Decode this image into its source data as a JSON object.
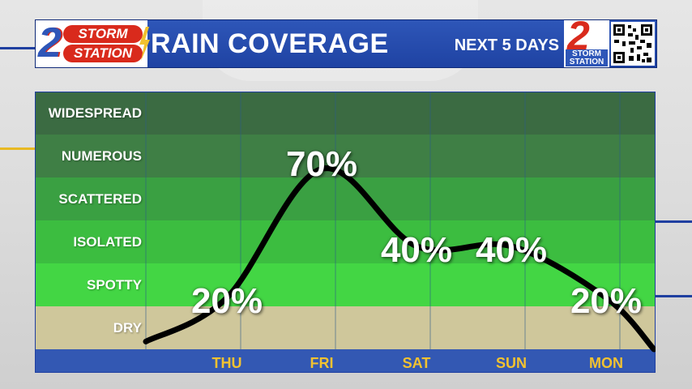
{
  "header": {
    "logo_number": "2",
    "logo_line1": "STORM",
    "logo_line2": "STATION",
    "title": "RAIN COVERAGE",
    "subtitle": "NEXT 5 DAYS",
    "right_logo_number": "2",
    "right_logo_line1": "STORM",
    "right_logo_line2": "STATION"
  },
  "colors": {
    "header_blue": "#2346a6",
    "accent_red": "#d92a1c",
    "day_yellow": "#f2c230",
    "band_widespread": "#3b6b42",
    "band_numerous": "#3f7f45",
    "band_scattered": "#3aa042",
    "band_isolated": "#3cbd40",
    "band_spotty": "#43d644",
    "band_dry": "#cfc79b",
    "footer_blue": "#3358b3"
  },
  "chart_data": {
    "type": "line",
    "title": "RAIN COVERAGE",
    "subtitle": "NEXT 5 DAYS",
    "categories": [
      "THU",
      "FRI",
      "SAT",
      "SUN",
      "MON"
    ],
    "values": [
      20,
      70,
      40,
      40,
      20
    ],
    "value_labels": [
      "20%",
      "70%",
      "40%",
      "40%",
      "20%"
    ],
    "y_categories": [
      "DRY",
      "SPOTTY",
      "ISOLATED",
      "SCATTERED",
      "NUMEROUS",
      "WIDESPREAD"
    ],
    "ylim": [
      0,
      100
    ],
    "unit": "%",
    "legend": "none",
    "grid": true
  }
}
